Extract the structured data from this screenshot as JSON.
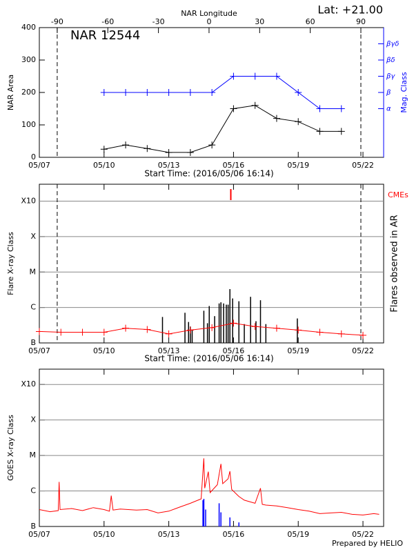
{
  "chart_data": [
    {
      "type": "line",
      "title": "NAR 12544",
      "annotation": "Lat: +21.00",
      "x2label": "NAR Longitude",
      "x2lim": [
        -100.6,
        103.5
      ],
      "x2ticks": [
        -90,
        -60,
        -30,
        0,
        30,
        60,
        90
      ],
      "xlim": [
        "05/07 00:00",
        "05/22 23:00"
      ],
      "xticks": [
        "05/07",
        "05/10",
        "05/13",
        "05/16",
        "05/19",
        "05/22"
      ],
      "xlabel": "Start Time: (2016/05/06 16:14)",
      "ylabel": "NAR Area",
      "ylim": [
        0,
        400
      ],
      "yticks": [
        0,
        100,
        200,
        300,
        400
      ],
      "y2label": "Mag. Class",
      "y2lim": [
        0,
        8
      ],
      "y2ticks": [
        {
          "value": 3,
          "label": "α"
        },
        {
          "value": 4,
          "label": "β"
        },
        {
          "value": 5,
          "label": "βγ"
        },
        {
          "value": 6,
          "label": "βδ"
        },
        {
          "value": 7,
          "label": "βγδ"
        }
      ],
      "y2color": "#0000ff",
      "x": [
        "05/10",
        "05/11",
        "05/12",
        "05/13",
        "05/14",
        "05/15",
        "05/16",
        "05/17",
        "05/18",
        "05/19",
        "05/20",
        "05/21"
      ],
      "series": [
        {
          "type": "line",
          "color": "#000000",
          "markers": true,
          "values": [
            25,
            38,
            27,
            15,
            15,
            38,
            150,
            160,
            120,
            110,
            80,
            80
          ]
        },
        {
          "type": "line",
          "color": "#0000ff",
          "markers": true,
          "axis": "y2",
          "values": [
            4,
            4,
            4,
            4,
            4,
            4,
            5,
            5,
            5,
            4,
            3,
            3
          ]
        }
      ]
    },
    {
      "type": "line",
      "log": true,
      "grid": true,
      "xlim": [
        "05/07 00:00",
        "05/22 23:00"
      ],
      "xticks": [
        "05/07",
        "05/10",
        "05/13",
        "05/16",
        "05/19",
        "05/22"
      ],
      "xlabel": "Start Time: (2016/05/06 16:14)",
      "ylabel": "Flare X-ray Class",
      "y2label": "Flares observed in AR",
      "ylim": [
        1e-07,
        0.003
      ],
      "yticks": [
        {
          "value": 1e-07,
          "label": "B"
        },
        {
          "value": 1e-06,
          "label": "C"
        },
        {
          "value": 1e-05,
          "label": "M"
        },
        {
          "value": 0.0001,
          "label": "X"
        },
        {
          "value": 0.001,
          "label": "X10"
        }
      ],
      "series": [
        {
          "type": "bar",
          "color": "#000000",
          "x": [
            "05/12 17:00",
            "05/13 18:00",
            "05/13 22:00",
            "05/14 00:00",
            "05/14 02:00",
            "05/14 15:00",
            "05/14 19:00",
            "05/14 21:00",
            "05/15 03:00",
            "05/15 08:00",
            "05/15 10:00",
            "05/15 13:00",
            "05/15 16:00",
            "05/15 18:00",
            "05/15 20:00",
            "05/15 23:00",
            "05/16 06:00",
            "05/16 12:00",
            "05/16 19:00",
            "05/17 01:00",
            "05/17 06:00",
            "05/17 12:00",
            "05/18 23:00"
          ],
          "values": [
            5.4e-07,
            7.1e-07,
            3.9e-07,
            2.9e-07,
            2.4e-07,
            8.1e-07,
            3.6e-07,
            1.1e-06,
            5.7e-07,
            1.3e-06,
            1.4e-06,
            1.3e-06,
            1.2e-06,
            1.2e-06,
            3.3e-06,
            1.8e-06,
            1.5e-06,
            3.4e-07,
            2e-06,
            4.1e-07,
            1.6e-06,
            3.4e-07,
            4.9e-07
          ]
        },
        {
          "type": "line",
          "color": "#ff0000",
          "markers": true,
          "x": [
            "05/07",
            "05/08",
            "05/09",
            "05/10",
            "05/11",
            "05/12",
            "05/13",
            "05/14",
            "05/15",
            "05/16",
            "05/17",
            "05/18",
            "05/19",
            "05/20",
            "05/21",
            "05/22"
          ],
          "values": [
            2.1e-07,
            2e-07,
            2e-07,
            2e-07,
            2.6e-07,
            2.4e-07,
            1.8e-07,
            2.3e-07,
            2.7e-07,
            3.6e-07,
            2.9e-07,
            2.6e-07,
            2.3e-07,
            2e-07,
            1.8e-07,
            1.65e-07
          ]
        },
        {
          "type": "event",
          "name": "CMEs",
          "color": "#ff0000",
          "x": [
            "05/15 21:00"
          ]
        }
      ]
    },
    {
      "type": "line",
      "log": true,
      "grid": true,
      "footer": "Prepared by HELIO",
      "xlim": [
        "05/07 00:00",
        "05/22 23:00"
      ],
      "xticks": [
        "05/07",
        "05/10",
        "05/13",
        "05/16",
        "05/19",
        "05/22"
      ],
      "ylabel": "GOES X-ray Class",
      "ylim": [
        1e-07,
        0.0027
      ],
      "yticks": [
        {
          "value": 1e-07,
          "label": "B"
        },
        {
          "value": 1e-06,
          "label": "C"
        },
        {
          "value": 1e-05,
          "label": "M"
        },
        {
          "value": 0.0001,
          "label": "X"
        },
        {
          "value": 0.001,
          "label": "X10"
        }
      ],
      "series": [
        {
          "type": "line",
          "color": "#ff0000",
          "x": [
            "05/07 00:00",
            "05/07 12:00",
            "05/07 21:00",
            "05/07 22:00",
            "05/07 23:00",
            "05/08 12:00",
            "05/09 00:00",
            "05/09 12:00",
            "05/10 00:00",
            "05/10 06:00",
            "05/10 08:00",
            "05/10 10:00",
            "05/10 18:00",
            "05/11 12:00",
            "05/12 00:00",
            "05/12 12:00",
            "05/13 00:00",
            "05/13 12:00",
            "05/14 00:00",
            "05/14 12:00",
            "05/14 15:00",
            "05/14 16:00",
            "05/14 20:00",
            "05/14 22:00",
            "05/15 06:00",
            "05/15 10:00",
            "05/15 12:00",
            "05/15 18:00",
            "05/15 20:00",
            "05/15 22:00",
            "05/16 06:00",
            "05/16 12:00",
            "05/17 00:00",
            "05/17 06:00",
            "05/17 08:00",
            "05/17 12:00",
            "05/18 00:00",
            "05/18 12:00",
            "05/19 00:00",
            "05/19 12:00",
            "05/20 00:00",
            "05/20 12:00",
            "05/21 00:00",
            "05/21 12:00",
            "05/22 00:00",
            "05/22 12:00",
            "05/22 18:00"
          ],
          "values": [
            3e-07,
            2.6e-07,
            2.8e-07,
            1.8e-06,
            3e-07,
            3.2e-07,
            2.8e-07,
            3.4e-07,
            3e-07,
            2.7e-07,
            7.4e-07,
            2.9e-07,
            3.1e-07,
            2.9e-07,
            3e-07,
            2.4e-07,
            2.7e-07,
            3.5e-07,
            4.5e-07,
            6e-07,
            8.3e-06,
            1.2e-06,
            3.5e-06,
            9e-07,
            1.5e-06,
            5.8e-06,
            1.6e-06,
            2.2e-06,
            3.6e-06,
            1.1e-06,
            7e-07,
            5.5e-07,
            4.5e-07,
            1.2e-06,
            4.2e-07,
            4e-07,
            3.8e-07,
            3.4e-07,
            3e-07,
            2.7e-07,
            2.3e-07,
            2.4e-07,
            2.5e-07,
            2.2e-07,
            2.1e-07,
            2.3e-07,
            2.2e-07
          ]
        },
        {
          "type": "bar",
          "color": "#0000ff",
          "x": [
            "05/14 14:00",
            "05/14 15:00",
            "05/14 17:00",
            "05/15 08:00",
            "05/15 10:00",
            "05/15 20:00",
            "05/16 06:00"
          ],
          "values": [
            5.5e-07,
            6e-07,
            3e-07,
            4.5e-07,
            2.5e-07,
            1.8e-07,
            1.3e-07
          ]
        }
      ]
    }
  ]
}
